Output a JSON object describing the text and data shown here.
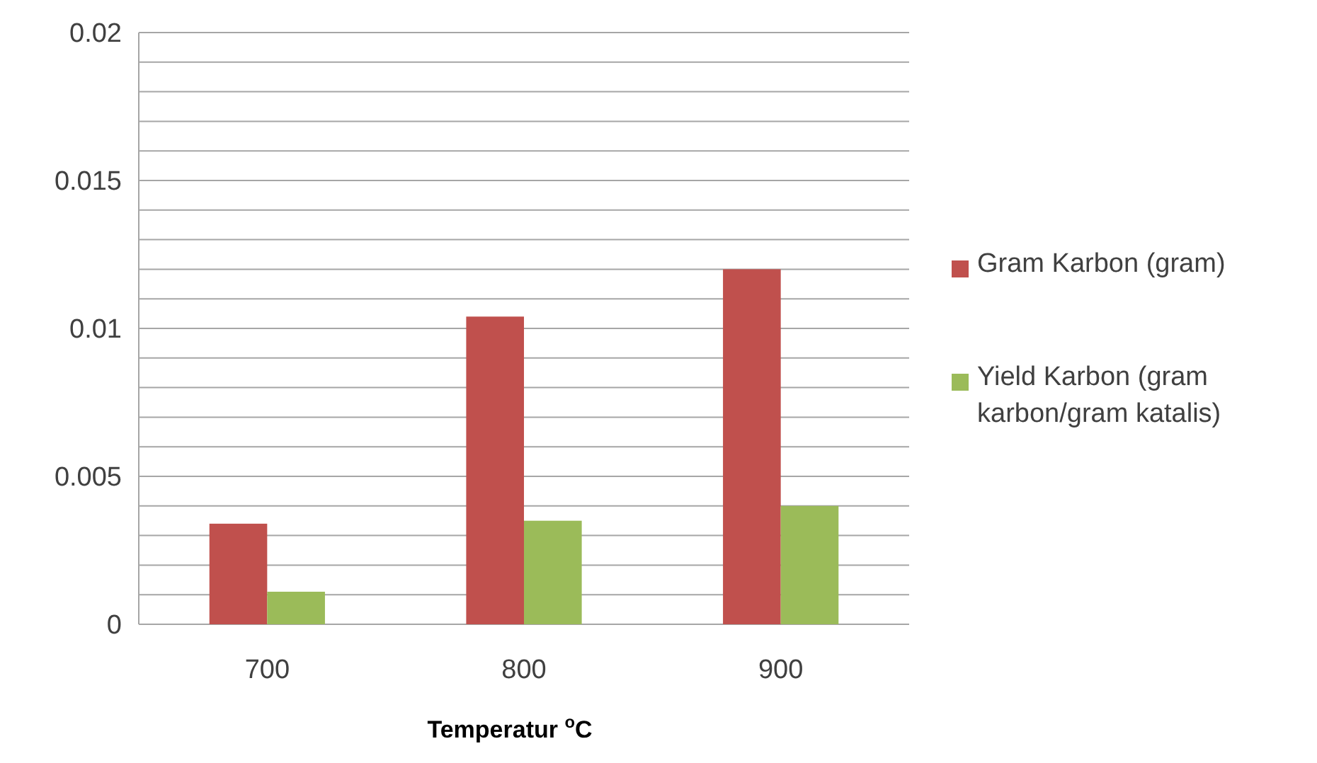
{
  "chart_data": {
    "type": "bar",
    "xlabel": "Temperatur $^{o}$C",
    "categories": [
      "700",
      "800",
      "900"
    ],
    "series": [
      {
        "name": "Gram Karbon (gram)",
        "color": "#c0504d",
        "values": [
          0.0034,
          0.0104,
          0.012
        ]
      },
      {
        "name": "Yield Karbon (gram karbon/gram katalis)",
        "color": "#9bbb59",
        "values": [
          0.0011,
          0.0035,
          0.004
        ]
      }
    ],
    "ylim": [
      0,
      0.02
    ],
    "yticks": [
      0,
      {
        "value": 0.001,
        "label": null
      },
      {
        "value": 0.002,
        "label": null
      },
      {
        "value": 0.003,
        "label": null
      },
      {
        "value": 0.004,
        "label": null
      },
      0.005,
      {
        "value": 0.006,
        "label": null
      },
      {
        "value": 0.007,
        "label": null
      },
      {
        "value": 0.008,
        "label": null
      },
      {
        "value": 0.009,
        "label": null
      },
      0.01,
      {
        "value": 0.011,
        "label": null
      },
      {
        "value": 0.012,
        "label": null
      },
      {
        "value": 0.013,
        "label": null
      },
      {
        "value": 0.014,
        "label": null
      },
      0.015,
      {
        "value": 0.016,
        "label": null
      },
      {
        "value": 0.017,
        "label": null
      },
      {
        "value": 0.018,
        "label": null
      },
      {
        "value": 0.019,
        "label": null
      },
      0.02
    ],
    "grid": "y",
    "legend": "right"
  }
}
